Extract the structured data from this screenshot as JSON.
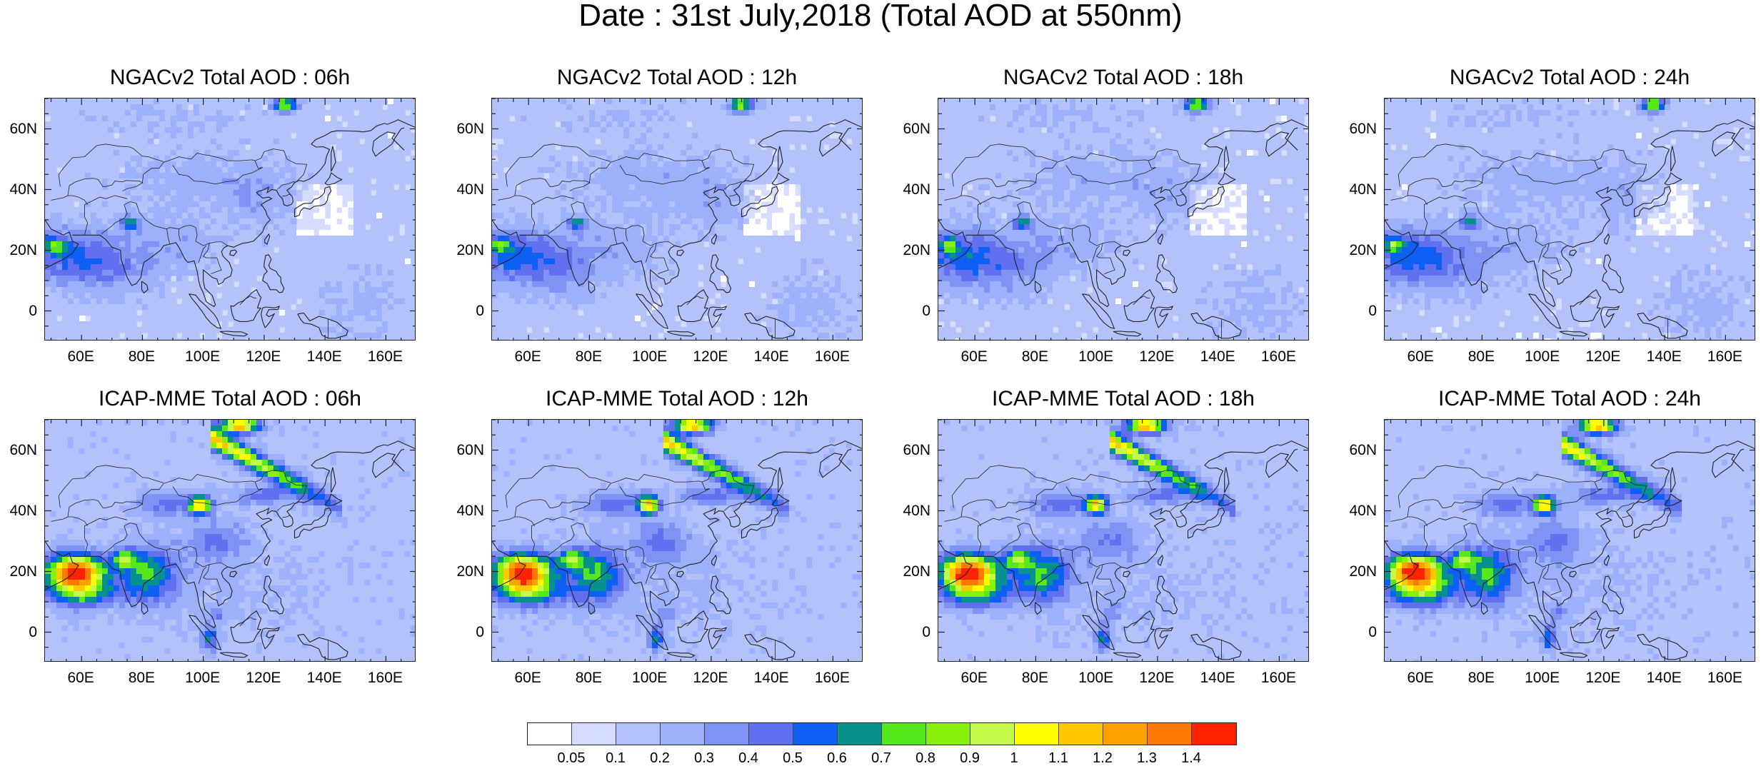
{
  "title": "Date : 31st July,2018 (Total AOD at 550nm)",
  "panels": [
    {
      "title": "NGACv2 Total AOD : 06h",
      "model": "ngac"
    },
    {
      "title": "NGACv2 Total AOD : 12h",
      "model": "ngac"
    },
    {
      "title": "NGACv2 Total AOD : 18h",
      "model": "ngac"
    },
    {
      "title": "NGACv2 Total AOD : 24h",
      "model": "ngac"
    },
    {
      "title": "ICAP-MME Total AOD : 06h",
      "model": "icap"
    },
    {
      "title": "ICAP-MME Total AOD : 12h",
      "model": "icap"
    },
    {
      "title": "ICAP-MME Total AOD : 18h",
      "model": "icap"
    },
    {
      "title": "ICAP-MME Total AOD : 24h",
      "model": "icap"
    }
  ],
  "lat_labels": [
    "60N",
    "40N",
    "20N",
    "0"
  ],
  "lon_labels": [
    "60E",
    "80E",
    "100E",
    "120E",
    "140E",
    "160E"
  ],
  "map_extent": {
    "lon": [
      48,
      170
    ],
    "lat": [
      -10,
      70
    ]
  },
  "colorbar": {
    "ticks": [
      "0.05",
      "0.1",
      "0.2",
      "0.3",
      "0.4",
      "0.5",
      "0.6",
      "0.7",
      "0.8",
      "0.9",
      "1",
      "1.1",
      "1.2",
      "1.3",
      "1.4"
    ],
    "colors": [
      "#ffffff",
      "#d5dcff",
      "#b4c2fb",
      "#9db0fb",
      "#7f93f5",
      "#6070ef",
      "#0e5ff3",
      "#07918e",
      "#56e81d",
      "#88f00b",
      "#c4fb4b",
      "#ffff00",
      "#ffc800",
      "#ffa200",
      "#ff7800",
      "#ff2200"
    ]
  }
}
